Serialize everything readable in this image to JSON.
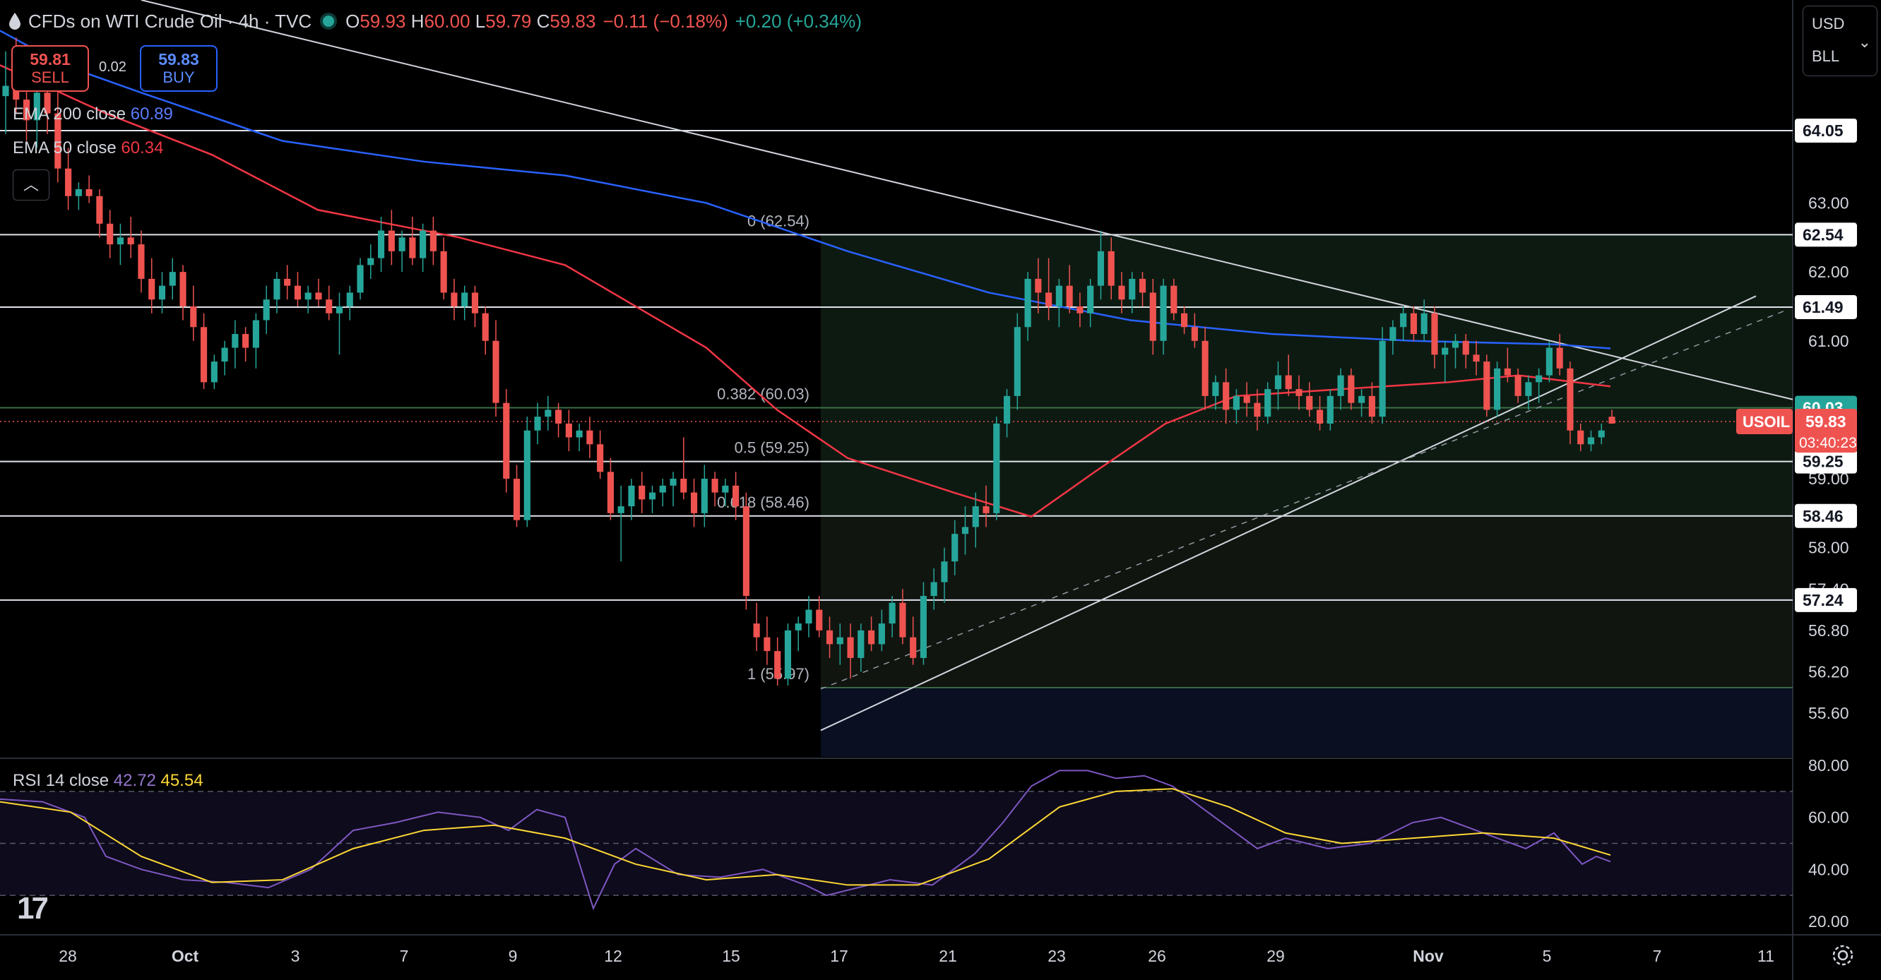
{
  "header": {
    "symbol_title": "CFDs on WTI Crude Oil · 4h · TVC",
    "open_label": "O",
    "open": "59.93",
    "high_label": "H",
    "high": "60.00",
    "low_label": "L",
    "low": "59.79",
    "close_label": "C",
    "close": "59.83",
    "change": "−0.11 (−0.18%)",
    "change2": "+0.20 (+0.34%)"
  },
  "trade": {
    "sell_price": "59.81",
    "sell_label": "SELL",
    "buy_price": "59.83",
    "buy_label": "BUY",
    "spread": "0.02"
  },
  "indicators": {
    "ema200_label": "EMA 200 close",
    "ema200_value": "60.89",
    "ema50_label": "EMA 50 close",
    "ema50_value": "60.34",
    "rsi_label": "RSI 14 close",
    "rsi_value": "42.72",
    "rsi_ma_value": "45.54"
  },
  "unit": {
    "currency": "USD",
    "unit": "BLL"
  },
  "colors": {
    "up": "#26a69a",
    "down": "#ef5350",
    "ema200": "#2962ff",
    "ema50": "#f23645",
    "rsi": "#7e57c2",
    "rsi_ma": "#fdd835"
  },
  "chart_data": {
    "type": "candlestick",
    "symbol": "USOIL",
    "current_price": "59.83",
    "countdown": "03:40:23",
    "x_tick_labels": [
      "28",
      "Oct",
      "3",
      "7",
      "9",
      "12",
      "15",
      "17",
      "21",
      "23",
      "26",
      "29",
      "Nov",
      "5",
      "7",
      "11"
    ],
    "y_axis_ticks": [
      "63.00",
      "62.00",
      "61.00",
      "59.00",
      "58.00",
      "57.40",
      "56.80",
      "56.20",
      "55.60"
    ],
    "price_levels": [
      "64.05",
      "62.54",
      "61.49",
      "60.03",
      "59.25",
      "58.46",
      "57.24"
    ],
    "fib_levels": [
      {
        "label": "0 (62.54)",
        "value": 62.54
      },
      {
        "label": "0.382 (60.03)",
        "value": 60.03
      },
      {
        "label": "0.5 (59.25)",
        "value": 59.25
      },
      {
        "label": "0.618 (58.46)",
        "value": 58.46
      },
      {
        "label": "1 (55.97)",
        "value": 55.97
      }
    ],
    "rsi_ticks": [
      "80.00",
      "60.00",
      "40.00",
      "20.00"
    ],
    "candles": [
      [
        64.55,
        65.2,
        64.0,
        64.7
      ],
      [
        64.7,
        65.4,
        64.3,
        64.5
      ],
      [
        64.5,
        65.0,
        63.9,
        64.2
      ],
      [
        64.2,
        64.8,
        63.8,
        64.6
      ],
      [
        64.6,
        64.9,
        64.0,
        64.3
      ],
      [
        64.3,
        64.6,
        63.3,
        63.5
      ],
      [
        63.5,
        63.8,
        62.9,
        63.1
      ],
      [
        63.1,
        63.3,
        62.9,
        63.2
      ],
      [
        63.2,
        63.4,
        63.0,
        63.1
      ],
      [
        63.1,
        63.2,
        62.5,
        62.7
      ],
      [
        62.7,
        62.9,
        62.2,
        62.4
      ],
      [
        62.4,
        62.7,
        62.1,
        62.5
      ],
      [
        62.5,
        62.8,
        62.2,
        62.4
      ],
      [
        62.4,
        62.6,
        61.7,
        61.9
      ],
      [
        61.9,
        62.2,
        61.4,
        61.6
      ],
      [
        61.6,
        62.0,
        61.4,
        61.8
      ],
      [
        61.8,
        62.2,
        61.6,
        62.0
      ],
      [
        62.0,
        62.1,
        61.3,
        61.5
      ],
      [
        61.5,
        61.8,
        61.0,
        61.2
      ],
      [
        61.2,
        61.4,
        60.3,
        60.4
      ],
      [
        60.4,
        60.8,
        60.3,
        60.7
      ],
      [
        60.7,
        61.0,
        60.5,
        60.9
      ],
      [
        60.9,
        61.3,
        60.6,
        61.1
      ],
      [
        61.1,
        61.2,
        60.7,
        60.9
      ],
      [
        60.9,
        61.4,
        60.6,
        61.3
      ],
      [
        61.3,
        61.8,
        61.1,
        61.6
      ],
      [
        61.6,
        62.0,
        61.4,
        61.9
      ],
      [
        61.9,
        62.1,
        61.6,
        61.8
      ],
      [
        61.8,
        62.0,
        61.5,
        61.6
      ],
      [
        61.6,
        61.8,
        61.4,
        61.7
      ],
      [
        61.7,
        61.9,
        61.5,
        61.6
      ],
      [
        61.6,
        61.8,
        61.3,
        61.4
      ],
      [
        61.4,
        61.7,
        60.8,
        61.5
      ],
      [
        61.5,
        61.8,
        61.3,
        61.7
      ],
      [
        61.7,
        62.2,
        61.6,
        62.1
      ],
      [
        62.1,
        62.4,
        61.9,
        62.2
      ],
      [
        62.2,
        62.8,
        62.0,
        62.6
      ],
      [
        62.6,
        62.9,
        62.1,
        62.3
      ],
      [
        62.3,
        62.6,
        62.0,
        62.5
      ],
      [
        62.5,
        62.8,
        62.1,
        62.2
      ],
      [
        62.2,
        62.7,
        62.0,
        62.6
      ],
      [
        62.6,
        62.8,
        62.1,
        62.3
      ],
      [
        62.3,
        62.5,
        61.6,
        61.7
      ],
      [
        61.7,
        61.9,
        61.3,
        61.5
      ],
      [
        61.5,
        61.8,
        61.3,
        61.7
      ],
      [
        61.7,
        61.8,
        61.2,
        61.4
      ],
      [
        61.4,
        61.5,
        60.8,
        61.0
      ],
      [
        61.0,
        61.3,
        59.9,
        60.1
      ],
      [
        60.1,
        60.3,
        58.8,
        59.0
      ],
      [
        59.0,
        59.2,
        58.3,
        58.4
      ],
      [
        58.4,
        59.9,
        58.3,
        59.7
      ],
      [
        59.7,
        60.1,
        59.5,
        59.9
      ],
      [
        59.9,
        60.2,
        59.7,
        60.0
      ],
      [
        60.0,
        60.1,
        59.6,
        59.8
      ],
      [
        59.8,
        60.0,
        59.4,
        59.6
      ],
      [
        59.6,
        59.8,
        59.4,
        59.7
      ],
      [
        59.7,
        59.9,
        59.3,
        59.5
      ],
      [
        59.5,
        59.7,
        59.0,
        59.1
      ],
      [
        59.1,
        59.3,
        58.4,
        58.5
      ],
      [
        58.5,
        58.9,
        57.8,
        58.6
      ],
      [
        58.6,
        59.0,
        58.4,
        58.9
      ],
      [
        58.9,
        59.1,
        58.5,
        58.7
      ],
      [
        58.7,
        58.9,
        58.5,
        58.8
      ],
      [
        58.8,
        59.0,
        58.6,
        58.9
      ],
      [
        58.9,
        59.1,
        58.6,
        59.0
      ],
      [
        59.0,
        59.6,
        58.7,
        58.8
      ],
      [
        58.8,
        59.0,
        58.3,
        58.5
      ],
      [
        58.5,
        59.2,
        58.3,
        59.0
      ],
      [
        59.0,
        59.1,
        58.6,
        58.8
      ],
      [
        58.8,
        59.0,
        58.6,
        58.9
      ],
      [
        58.9,
        59.1,
        58.4,
        58.6
      ],
      [
        58.6,
        58.8,
        57.1,
        57.3
      ],
      [
        56.9,
        57.2,
        56.5,
        56.7
      ],
      [
        56.7,
        57.0,
        56.3,
        56.5
      ],
      [
        56.5,
        56.7,
        56.0,
        56.1
      ],
      [
        56.1,
        56.9,
        56.0,
        56.8
      ],
      [
        56.8,
        57.0,
        56.5,
        56.9
      ],
      [
        56.9,
        57.3,
        56.7,
        57.1
      ],
      [
        57.1,
        57.3,
        56.7,
        56.8
      ],
      [
        56.8,
        57.0,
        56.4,
        56.6
      ],
      [
        56.6,
        56.9,
        56.3,
        56.7
      ],
      [
        56.7,
        56.9,
        56.1,
        56.4
      ],
      [
        56.4,
        56.9,
        56.2,
        56.8
      ],
      [
        56.8,
        57.0,
        56.5,
        56.6
      ],
      [
        56.6,
        57.1,
        56.5,
        56.9
      ],
      [
        56.9,
        57.3,
        56.7,
        57.2
      ],
      [
        57.2,
        57.4,
        56.6,
        56.7
      ],
      [
        56.7,
        57.0,
        56.3,
        56.4
      ],
      [
        56.4,
        57.5,
        56.3,
        57.3
      ],
      [
        57.3,
        57.7,
        57.1,
        57.5
      ],
      [
        57.5,
        58.0,
        57.2,
        57.8
      ],
      [
        57.8,
        58.4,
        57.6,
        58.2
      ],
      [
        58.2,
        58.6,
        57.9,
        58.3
      ],
      [
        58.3,
        58.8,
        58.0,
        58.6
      ],
      [
        58.6,
        58.9,
        58.3,
        58.5
      ],
      [
        58.5,
        59.9,
        58.4,
        59.8
      ],
      [
        59.8,
        60.3,
        59.6,
        60.2
      ],
      [
        60.2,
        61.4,
        60.0,
        61.2
      ],
      [
        61.2,
        62.0,
        61.0,
        61.9
      ],
      [
        61.9,
        62.2,
        61.4,
        61.7
      ],
      [
        61.7,
        62.2,
        61.3,
        61.5
      ],
      [
        61.5,
        61.9,
        61.2,
        61.8
      ],
      [
        61.8,
        62.1,
        61.4,
        61.5
      ],
      [
        61.5,
        61.7,
        61.2,
        61.4
      ],
      [
        61.4,
        61.9,
        61.2,
        61.8
      ],
      [
        61.8,
        62.6,
        61.6,
        62.3
      ],
      [
        62.3,
        62.5,
        61.6,
        61.8
      ],
      [
        61.8,
        62.0,
        61.4,
        61.6
      ],
      [
        61.6,
        62.0,
        61.4,
        61.9
      ],
      [
        61.9,
        62.0,
        61.5,
        61.7
      ],
      [
        61.7,
        61.9,
        60.8,
        61.0
      ],
      [
        61.0,
        61.9,
        60.8,
        61.8
      ],
      [
        61.8,
        61.9,
        61.3,
        61.4
      ],
      [
        61.4,
        61.5,
        61.1,
        61.2
      ],
      [
        61.2,
        61.4,
        60.9,
        61.0
      ],
      [
        61.0,
        61.2,
        60.0,
        60.2
      ],
      [
        60.2,
        60.5,
        60.0,
        60.4
      ],
      [
        60.4,
        60.6,
        59.8,
        60.0
      ],
      [
        60.0,
        60.3,
        59.8,
        60.2
      ],
      [
        60.2,
        60.4,
        59.9,
        60.1
      ],
      [
        60.1,
        60.3,
        59.7,
        59.9
      ],
      [
        59.9,
        60.4,
        59.8,
        60.3
      ],
      [
        60.3,
        60.7,
        60.0,
        60.5
      ],
      [
        60.5,
        60.8,
        60.2,
        60.3
      ],
      [
        60.3,
        60.5,
        60.0,
        60.2
      ],
      [
        60.2,
        60.4,
        59.9,
        60.0
      ],
      [
        60.0,
        60.2,
        59.7,
        59.8
      ],
      [
        59.8,
        60.3,
        59.7,
        60.2
      ],
      [
        60.2,
        60.6,
        60.0,
        60.5
      ],
      [
        60.5,
        60.6,
        60.0,
        60.1
      ],
      [
        60.1,
        60.3,
        59.9,
        60.2
      ],
      [
        60.2,
        60.4,
        59.8,
        59.9
      ],
      [
        59.9,
        61.2,
        59.8,
        61.0
      ],
      [
        61.0,
        61.3,
        60.8,
        61.2
      ],
      [
        61.2,
        61.5,
        61.0,
        61.4
      ],
      [
        61.4,
        61.5,
        61.0,
        61.1
      ],
      [
        61.1,
        61.6,
        61.0,
        61.4
      ],
      [
        61.4,
        61.5,
        60.6,
        60.8
      ],
      [
        60.8,
        61.0,
        60.4,
        60.9
      ],
      [
        60.9,
        61.1,
        60.6,
        61.0
      ],
      [
        61.0,
        61.1,
        60.6,
        60.8
      ],
      [
        60.8,
        61.0,
        60.5,
        60.7
      ],
      [
        60.7,
        60.8,
        59.9,
        60.0
      ],
      [
        60.0,
        60.7,
        59.9,
        60.6
      ],
      [
        60.6,
        60.9,
        60.4,
        60.5
      ],
      [
        60.5,
        60.6,
        60.1,
        60.2
      ],
      [
        60.2,
        60.5,
        60.0,
        60.4
      ],
      [
        60.4,
        60.6,
        60.1,
        60.5
      ],
      [
        60.5,
        61.0,
        60.4,
        60.9
      ],
      [
        60.9,
        61.1,
        60.5,
        60.6
      ],
      [
        60.6,
        60.7,
        59.5,
        59.7
      ],
      [
        59.7,
        59.8,
        59.4,
        59.5
      ],
      [
        59.5,
        59.7,
        59.4,
        59.6
      ],
      [
        59.6,
        59.8,
        59.5,
        59.7
      ],
      [
        59.9,
        60.0,
        59.8,
        59.8
      ]
    ],
    "ema200": [
      [
        0,
        65.5
      ],
      [
        90,
        65.0
      ],
      [
        200,
        64.6
      ],
      [
        400,
        63.9
      ],
      [
        600,
        63.6
      ],
      [
        800,
        63.4
      ],
      [
        1000,
        63.0
      ],
      [
        1200,
        62.3
      ],
      [
        1400,
        61.7
      ],
      [
        1600,
        61.3
      ],
      [
        1800,
        61.1
      ],
      [
        2000,
        61.0
      ],
      [
        2200,
        60.95
      ],
      [
        2280,
        60.89
      ]
    ],
    "ema50": [
      [
        0,
        65.0
      ],
      [
        150,
        64.3
      ],
      [
        300,
        63.7
      ],
      [
        450,
        62.9
      ],
      [
        650,
        62.5
      ],
      [
        800,
        62.1
      ],
      [
        900,
        61.5
      ],
      [
        1000,
        60.9
      ],
      [
        1100,
        60.0
      ],
      [
        1200,
        59.3
      ],
      [
        1350,
        58.8
      ],
      [
        1460,
        58.45
      ],
      [
        1550,
        59.1
      ],
      [
        1650,
        59.8
      ],
      [
        1750,
        60.2
      ],
      [
        1900,
        60.3
      ],
      [
        2050,
        60.4
      ],
      [
        2150,
        60.5
      ],
      [
        2280,
        60.34
      ]
    ],
    "rsi": [
      [
        0,
        67
      ],
      [
        60,
        66
      ],
      [
        120,
        60
      ],
      [
        150,
        45
      ],
      [
        200,
        40
      ],
      [
        260,
        36
      ],
      [
        320,
        35
      ],
      [
        380,
        33
      ],
      [
        440,
        40
      ],
      [
        500,
        55
      ],
      [
        560,
        58
      ],
      [
        620,
        62
      ],
      [
        680,
        60
      ],
      [
        720,
        55
      ],
      [
        760,
        63
      ],
      [
        800,
        60
      ],
      [
        840,
        25
      ],
      [
        870,
        42
      ],
      [
        900,
        48
      ],
      [
        960,
        38
      ],
      [
        1020,
        37
      ],
      [
        1080,
        40
      ],
      [
        1140,
        34
      ],
      [
        1170,
        30
      ],
      [
        1200,
        32
      ],
      [
        1260,
        36
      ],
      [
        1320,
        34
      ],
      [
        1380,
        46
      ],
      [
        1420,
        58
      ],
      [
        1460,
        72
      ],
      [
        1500,
        78
      ],
      [
        1540,
        78
      ],
      [
        1580,
        75
      ],
      [
        1620,
        76
      ],
      [
        1660,
        72
      ],
      [
        1700,
        64
      ],
      [
        1740,
        56
      ],
      [
        1780,
        48
      ],
      [
        1820,
        52
      ],
      [
        1880,
        48
      ],
      [
        1940,
        50
      ],
      [
        2000,
        58
      ],
      [
        2040,
        60
      ],
      [
        2080,
        56
      ],
      [
        2120,
        52
      ],
      [
        2160,
        48
      ],
      [
        2200,
        54
      ],
      [
        2240,
        42
      ],
      [
        2260,
        45
      ],
      [
        2280,
        43
      ]
    ],
    "rsi_ma": [
      [
        0,
        66
      ],
      [
        100,
        62
      ],
      [
        200,
        45
      ],
      [
        300,
        35
      ],
      [
        400,
        36
      ],
      [
        500,
        48
      ],
      [
        600,
        55
      ],
      [
        700,
        57
      ],
      [
        800,
        52
      ],
      [
        900,
        42
      ],
      [
        1000,
        36
      ],
      [
        1100,
        38
      ],
      [
        1200,
        34
      ],
      [
        1300,
        34
      ],
      [
        1400,
        44
      ],
      [
        1500,
        64
      ],
      [
        1580,
        70
      ],
      [
        1660,
        71
      ],
      [
        1740,
        64
      ],
      [
        1820,
        54
      ],
      [
        1900,
        50
      ],
      [
        2000,
        52
      ],
      [
        2100,
        54
      ],
      [
        2200,
        52
      ],
      [
        2280,
        45.5
      ]
    ]
  }
}
